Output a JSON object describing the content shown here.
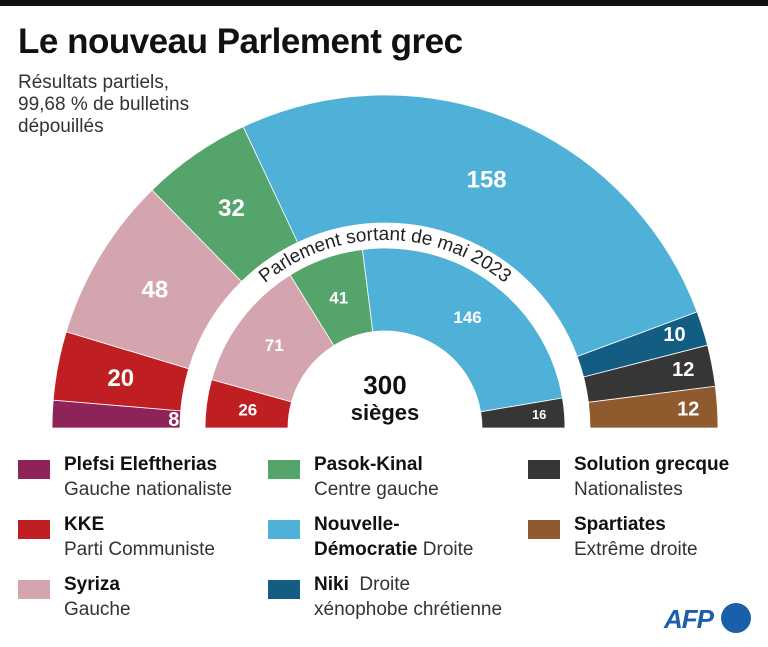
{
  "header": {
    "title": "Le nouveau Parlement grec",
    "subtitle_lines": [
      "Résultats partiels,",
      "99,68 % de bulletins",
      "dépouillés"
    ]
  },
  "chart_data": {
    "type": "pie",
    "subtype": "parliament-semicircle",
    "title": "Le nouveau Parlement grec",
    "subtitle": "Résultats partiels, 99,68 % de bulletins dépouillés",
    "total_label": "300",
    "total_sublabel": "sièges",
    "inner_ring_caption": "Parlement sortant de mai 2023",
    "order": "left-to-right",
    "series": [
      {
        "name": "Nouveau Parlement",
        "ring": "outer",
        "slices": [
          {
            "party": "Plefsi Eleftherias",
            "seats": 8,
            "color": "#8e2359"
          },
          {
            "party": "KKE",
            "seats": 20,
            "color": "#bf1e22"
          },
          {
            "party": "Syriza",
            "seats": 48,
            "color": "#d4a5af"
          },
          {
            "party": "Pasok-Kinal",
            "seats": 32,
            "color": "#55a46c"
          },
          {
            "party": "Nouvelle-Démocratie",
            "seats": 158,
            "color": "#4fb0d8"
          },
          {
            "party": "Niki",
            "seats": 10,
            "color": "#135d82"
          },
          {
            "party": "Solution grecque",
            "seats": 12,
            "color": "#363636"
          },
          {
            "party": "Spartiates",
            "seats": 12,
            "color": "#8f5a2d"
          }
        ]
      },
      {
        "name": "Parlement sortant de mai 2023",
        "ring": "inner",
        "slices": [
          {
            "party": "KKE",
            "seats": 26,
            "color": "#bf1e22"
          },
          {
            "party": "Syriza",
            "seats": 71,
            "color": "#d4a5af"
          },
          {
            "party": "Pasok-Kinal",
            "seats": 41,
            "color": "#55a46c"
          },
          {
            "party": "Nouvelle-Démocratie",
            "seats": 146,
            "color": "#4fb0d8"
          },
          {
            "party": "Solution grecque",
            "seats": 16,
            "color": "#363636"
          }
        ]
      }
    ],
    "legend_position": "bottom"
  },
  "legend": [
    {
      "name": "Plefsi Eleftherias",
      "desc": "Gauche nationaliste",
      "color": "#8e2359"
    },
    {
      "name": "KKE",
      "desc": "Parti Communiste",
      "color": "#bf1e22"
    },
    {
      "name": "Syriza",
      "desc": "Gauche",
      "color": "#d4a5af"
    },
    {
      "name": "Pasok-Kinal",
      "desc": "Centre gauche",
      "color": "#55a46c"
    },
    {
      "name": "Nouvelle-",
      "name2": "Démocratie",
      "desc": "Droite",
      "color": "#4fb0d8"
    },
    {
      "name": "Niki",
      "desc": "Droite",
      "desc2": "xénophobe chrétienne",
      "color": "#135d82"
    },
    {
      "name": "Solution grecque",
      "desc": "Nationalistes",
      "color": "#363636"
    },
    {
      "name": "Spartiates",
      "desc": "Extrême droite",
      "color": "#8f5a2d"
    }
  ],
  "credit": "AFP"
}
